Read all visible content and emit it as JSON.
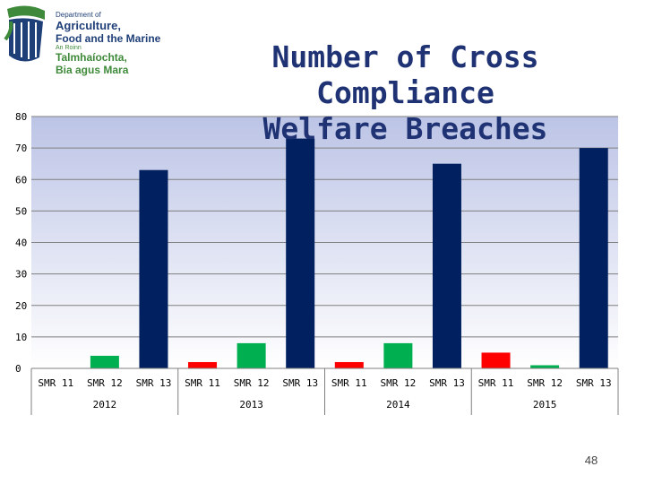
{
  "logo": {
    "dept_line1": "Department of",
    "dept_line2": "Agriculture,",
    "dept_line3": "Food and the Marine",
    "irish_line1": "An Roinn",
    "irish_line2": "Talmhaíochta,",
    "irish_line3": "Bia agus Mara",
    "colors": {
      "navy": "#1f3f78",
      "green": "#3f8a3a"
    },
    "icon": "harp-emblem-icon"
  },
  "title_lines": [
    "Number of Cross Compliance",
    "Welfare Breaches"
  ],
  "page_number": "48",
  "chart_data": {
    "type": "bar",
    "title": "Number of Cross Compliance Welfare Breaches",
    "xlabel": "",
    "ylabel": "",
    "ylim": [
      0,
      80
    ],
    "yticks": [
      0,
      10,
      20,
      30,
      40,
      50,
      60,
      70,
      80
    ],
    "grid": true,
    "legend": "none",
    "groups": [
      {
        "label": "2012",
        "categories": [
          "SMR 11",
          "SMR 12",
          "SMR 13"
        ],
        "values": [
          0,
          4,
          63
        ]
      },
      {
        "label": "2013",
        "categories": [
          "SMR 11",
          "SMR 12",
          "SMR 13"
        ],
        "values": [
          2,
          8,
          73
        ]
      },
      {
        "label": "2014",
        "categories": [
          "SMR 11",
          "SMR 12",
          "SMR 13"
        ],
        "values": [
          2,
          8,
          65
        ]
      },
      {
        "label": "2015",
        "categories": [
          "SMR 11",
          "SMR 12",
          "SMR 13"
        ],
        "values": [
          5,
          1,
          70
        ]
      }
    ],
    "category_colors": {
      "SMR 11": "#ff0000",
      "SMR 12": "#00b050",
      "SMR 13": "#002060"
    },
    "plot_background": [
      "#bcc4e6",
      "#ffffff"
    ],
    "gridline_color": "#7f7f7f"
  }
}
